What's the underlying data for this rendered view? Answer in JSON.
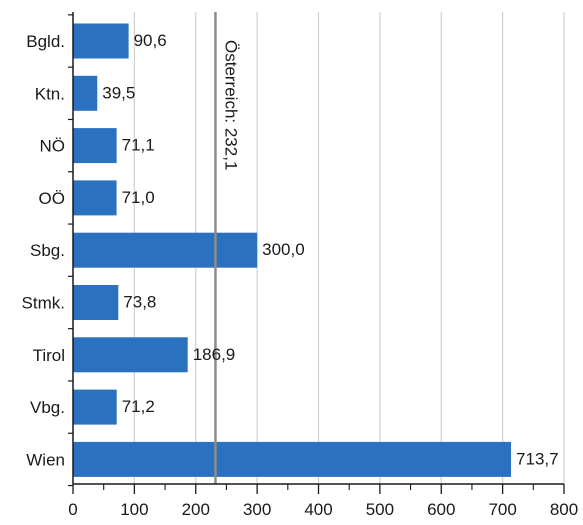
{
  "chart_data": {
    "type": "bar",
    "orientation": "horizontal",
    "categories": [
      "Bgld.",
      "Ktn.",
      "NÖ",
      "OÖ",
      "Sbg.",
      "Stmk.",
      "Tirol",
      "Vbg.",
      "Wien"
    ],
    "values": [
      90.6,
      39.5,
      71.1,
      71.0,
      300.0,
      73.8,
      186.9,
      71.2,
      713.7
    ],
    "value_labels": [
      "90,6",
      "39,5",
      "71,1",
      "71,0",
      "300,0",
      "73,8",
      "186,9",
      "71,2",
      "713,7"
    ],
    "xlim": [
      0,
      800
    ],
    "x_ticks": [
      0,
      100,
      200,
      300,
      400,
      500,
      600,
      700,
      800
    ],
    "x_tick_labels": [
      "0",
      "100",
      "200",
      "300",
      "400",
      "500",
      "600",
      "700",
      "800"
    ],
    "grid": "vertical",
    "reference_line": {
      "value": 232.1,
      "label": "Österreich: 232,1"
    },
    "colors": {
      "bar": "#2a72c0",
      "reference": "#8c8c8c",
      "grid": "#cfcfcf",
      "axis": "#1a1a1a"
    }
  }
}
